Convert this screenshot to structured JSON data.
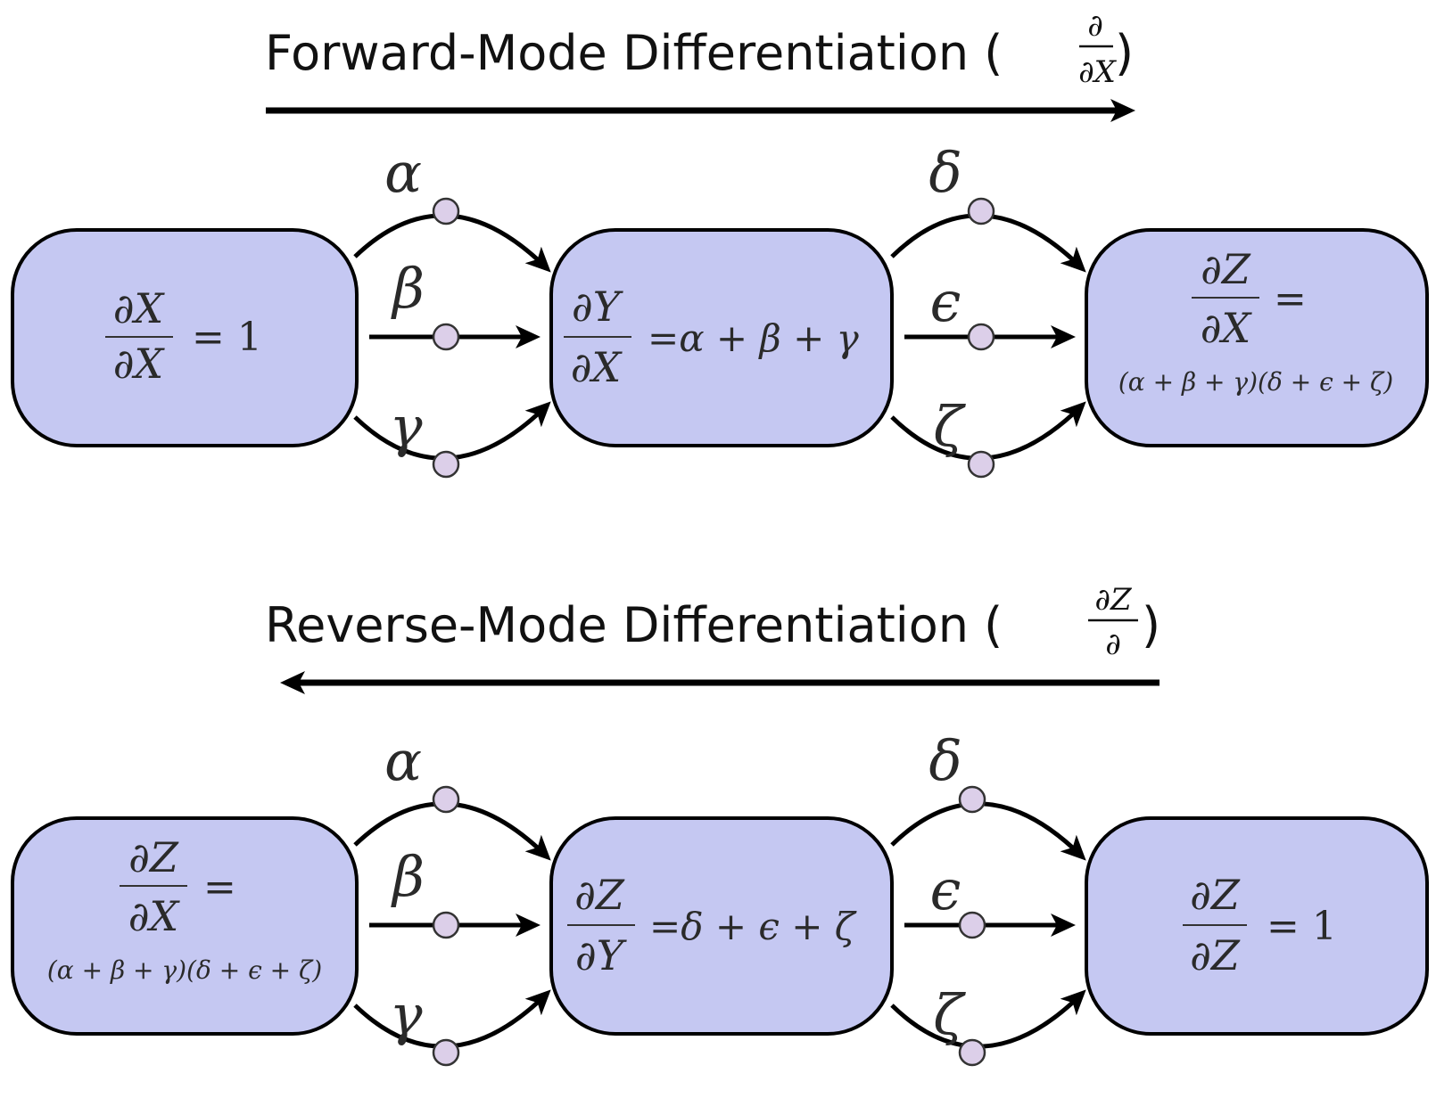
{
  "forward": {
    "title": "Forward-Mode Differentiation (",
    "op_num": "∂",
    "op_den": "∂X",
    "close_paren": ")",
    "edges_left": [
      "α",
      "β",
      "γ"
    ],
    "edges_right": [
      "δ",
      "ϵ",
      "ζ"
    ],
    "node1": {
      "num": "∂X",
      "den": "∂X",
      "rhs": "= 1"
    },
    "node2": {
      "num": "∂Y",
      "den": "∂X",
      "rhs": "=α + β + γ"
    },
    "node3": {
      "num": "∂Z",
      "den": "∂X",
      "rhs": "=",
      "expr": "(α + β + γ)(δ + ϵ + ζ)"
    }
  },
  "reverse": {
    "title": "Reverse-Mode Differentiation (",
    "op_num": "∂Z",
    "op_den": "∂",
    "close_paren": ")",
    "edges_left": [
      "α",
      "β",
      "γ"
    ],
    "edges_right": [
      "δ",
      "ϵ",
      "ζ"
    ],
    "node1": {
      "num": "∂Z",
      "den": "∂X",
      "rhs": "=",
      "expr": "(α + β + γ)(δ + ϵ + ζ)"
    },
    "node2": {
      "num": "∂Z",
      "den": "∂Y",
      "rhs": "=δ + ϵ + ζ"
    },
    "node3": {
      "num": "∂Z",
      "den": "∂Z",
      "rhs": "= 1"
    }
  }
}
